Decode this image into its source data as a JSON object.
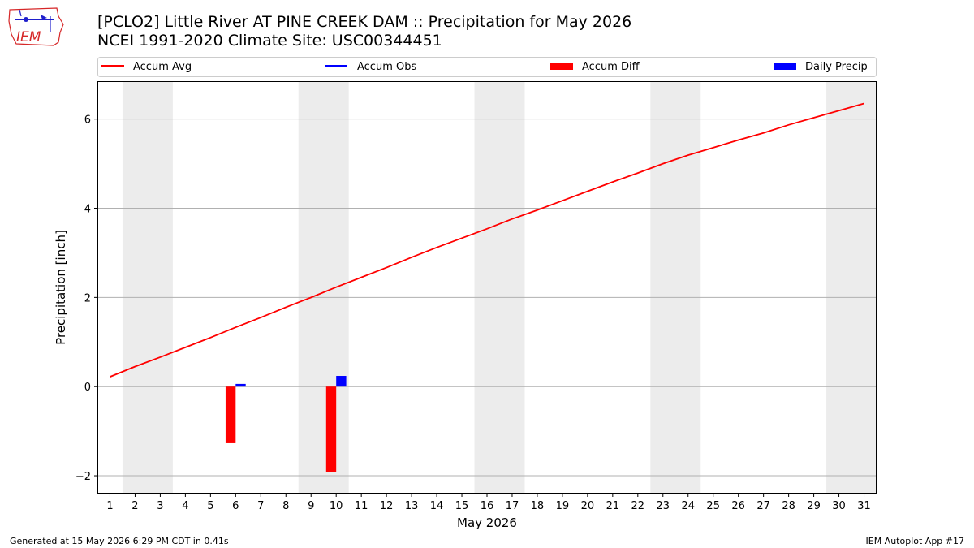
{
  "header": {
    "title_line1": "[PCLO2] Little River  AT PINE CREEK DAM :: Precipitation for May 2026",
    "title_line2": "NCEI 1991-2020 Climate Site: USC00344451"
  },
  "logo": {
    "text": "IEM",
    "color": "#d62728",
    "accent": "#1f1fcc"
  },
  "footer": {
    "left": "Generated at 15 May 2026 6:29 PM CDT in 0.41s",
    "right": "IEM Autoplot App #17"
  },
  "chart_data": {
    "type": "line",
    "title": "[PCLO2] Little River  AT PINE CREEK DAM :: Precipitation for May 2026",
    "subtitle": "NCEI 1991-2020 Climate Site: USC00344451",
    "xlabel": "May 2026",
    "ylabel": "Precipitation [inch]",
    "xlim": [
      0.5,
      31.5
    ],
    "ylim": [
      -2.4,
      6.85
    ],
    "x_ticks": [
      1,
      2,
      3,
      4,
      5,
      6,
      7,
      8,
      9,
      10,
      11,
      12,
      13,
      14,
      15,
      16,
      17,
      18,
      19,
      20,
      21,
      22,
      23,
      24,
      25,
      26,
      27,
      28,
      29,
      30,
      31
    ],
    "y_ticks": [
      -2,
      0,
      2,
      4,
      6
    ],
    "grid": "horizontal",
    "legend": {
      "placement": "top",
      "entries": [
        {
          "label": "Accum Avg",
          "kind": "line",
          "color": "#ff0000"
        },
        {
          "label": "Accum Obs",
          "kind": "line",
          "color": "#0000ff"
        },
        {
          "label": "Accum Diff",
          "kind": "bar",
          "color": "#ff0000"
        },
        {
          "label": "Daily Precip",
          "kind": "bar",
          "color": "#0000ff"
        }
      ]
    },
    "weekend_shading": [
      [
        1.5,
        3.5
      ],
      [
        8.5,
        10.5
      ],
      [
        15.5,
        17.5
      ],
      [
        22.5,
        24.5
      ],
      [
        29.5,
        31.5
      ]
    ],
    "shading_color": "#ececec",
    "series": [
      {
        "name": "Accum Avg",
        "kind": "line",
        "color": "#ff0000",
        "x": [
          1,
          2,
          3,
          4,
          5,
          6,
          7,
          8,
          9,
          10,
          11,
          12,
          13,
          14,
          15,
          16,
          17,
          18,
          19,
          20,
          21,
          22,
          23,
          24,
          25,
          26,
          27,
          28,
          29,
          30,
          31
        ],
        "values": [
          0.22,
          0.45,
          0.66,
          0.88,
          1.1,
          1.33,
          1.55,
          1.78,
          2.0,
          2.23,
          2.45,
          2.67,
          2.9,
          3.12,
          3.33,
          3.54,
          3.76,
          3.96,
          4.17,
          4.38,
          4.59,
          4.79,
          5.0,
          5.19,
          5.36,
          5.53,
          5.69,
          5.87,
          6.03,
          6.19,
          6.35
        ]
      },
      {
        "name": "Accum Diff",
        "kind": "bar",
        "color": "#ff0000",
        "x": [
          6,
          10
        ],
        "values": [
          -1.27,
          -1.91
        ]
      },
      {
        "name": "Daily Precip",
        "kind": "bar",
        "color": "#0000ff",
        "x": [
          6,
          10
        ],
        "values": [
          0.06,
          0.24
        ]
      }
    ]
  }
}
